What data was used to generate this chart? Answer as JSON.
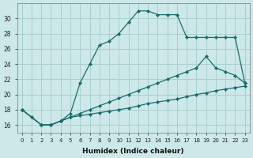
{
  "xlabel": "Humidex (Indice chaleur)",
  "background_color": "#cce8e8",
  "grid_color": "#aacfcf",
  "line_color": "#1a6b6b",
  "xlim_min": -0.5,
  "xlim_max": 23.5,
  "ylim_min": 15.0,
  "ylim_max": 32.0,
  "yticks": [
    16,
    18,
    20,
    22,
    24,
    26,
    28,
    30
  ],
  "xticks": [
    0,
    1,
    2,
    3,
    4,
    5,
    6,
    7,
    8,
    9,
    10,
    11,
    12,
    13,
    14,
    15,
    16,
    17,
    18,
    19,
    20,
    21,
    22,
    23
  ],
  "curve1_x": [
    0,
    1,
    2,
    3,
    4,
    5,
    6,
    7,
    8,
    9,
    10,
    11,
    12,
    13,
    14,
    15,
    16,
    17,
    18,
    19,
    20,
    21,
    22,
    23
  ],
  "curve1_y": [
    18,
    17,
    16,
    16,
    16.5,
    17.5,
    21.5,
    24,
    26.5,
    27,
    28,
    29.5,
    31,
    31,
    30.5,
    30.5,
    30.5,
    27.5,
    27.5,
    27.5,
    27.5,
    27.5,
    27.5,
    21.5
  ],
  "curve2_x": [
    0,
    2,
    3,
    4,
    5,
    6,
    7,
    8,
    9,
    10,
    11,
    12,
    13,
    14,
    15,
    16,
    17,
    18,
    19,
    20,
    21,
    22,
    23
  ],
  "curve2_y": [
    18,
    16,
    16,
    16.5,
    17,
    17.5,
    18,
    18.5,
    19,
    19.5,
    20,
    20.5,
    21,
    21.5,
    22,
    22.5,
    23,
    23.5,
    25,
    23.5,
    23,
    22.5,
    21.5
  ],
  "curve3_x": [
    0,
    2,
    3,
    4,
    5,
    6,
    7,
    8,
    9,
    10,
    11,
    12,
    13,
    14,
    15,
    16,
    17,
    18,
    19,
    20,
    21,
    22,
    23
  ],
  "curve3_y": [
    18,
    16,
    16,
    16.5,
    17,
    17.2,
    17.4,
    17.6,
    17.8,
    18,
    18.2,
    18.5,
    18.8,
    19,
    19.2,
    19.4,
    19.7,
    20,
    20.2,
    20.5,
    20.7,
    20.9,
    21.1
  ]
}
